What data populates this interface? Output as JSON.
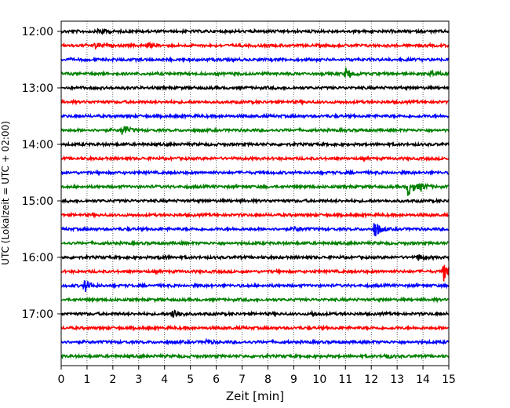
{
  "chart_data": {
    "type": "line",
    "title": "",
    "xlabel": "Zeit  [min]",
    "ylabel": "UTC (Lokalzeit = UTC + 02:00)",
    "xlim": [
      0,
      15
    ],
    "x_ticks": [
      0,
      1,
      2,
      3,
      4,
      5,
      6,
      7,
      8,
      9,
      10,
      11,
      12,
      13,
      14,
      15
    ],
    "x_tick_labels": [
      "0",
      "1",
      "2",
      "3",
      "4",
      "5",
      "6",
      "7",
      "8",
      "9",
      "10",
      "11",
      "12",
      "13",
      "14",
      "15"
    ],
    "y_tick_labels": [
      "12:00",
      "13:00",
      "14:00",
      "15:00",
      "16:00",
      "17:00"
    ],
    "y_tick_trace_index": [
      0,
      4,
      8,
      12,
      16,
      20
    ],
    "trace_interval_min": 15,
    "grid_x": true,
    "grid_x_style": "dotted",
    "colors": [
      "#000000",
      "#ff0000",
      "#0000ff",
      "#008000"
    ],
    "series": [
      {
        "start": "12:00",
        "color": "#000000",
        "events": [
          {
            "x": 1.45,
            "amp": 0.35
          }
        ]
      },
      {
        "start": "12:15",
        "color": "#ff0000",
        "events": [
          {
            "x": 1.3,
            "amp": 0.2
          },
          {
            "x": 3.3,
            "amp": 0.15
          }
        ]
      },
      {
        "start": "12:30",
        "color": "#0000ff",
        "events": []
      },
      {
        "start": "12:45",
        "color": "#008000",
        "events": [
          {
            "x": 11.0,
            "amp": 0.45
          },
          {
            "x": 14.3,
            "amp": 0.2
          }
        ]
      },
      {
        "start": "13:00",
        "color": "#000000",
        "events": []
      },
      {
        "start": "13:15",
        "color": "#ff0000",
        "events": []
      },
      {
        "start": "13:30",
        "color": "#0000ff",
        "events": []
      },
      {
        "start": "13:45",
        "color": "#008000",
        "events": [
          {
            "x": 2.35,
            "amp": 0.45
          }
        ]
      },
      {
        "start": "14:00",
        "color": "#000000",
        "events": []
      },
      {
        "start": "14:15",
        "color": "#ff0000",
        "events": []
      },
      {
        "start": "14:30",
        "color": "#0000ff",
        "events": []
      },
      {
        "start": "14:45",
        "color": "#008000",
        "events": [
          {
            "x": 13.4,
            "amp": 0.75
          },
          {
            "x": 13.9,
            "amp": 0.3
          }
        ]
      },
      {
        "start": "15:00",
        "color": "#000000",
        "events": []
      },
      {
        "start": "15:15",
        "color": "#ff0000",
        "events": []
      },
      {
        "start": "15:30",
        "color": "#0000ff",
        "events": [
          {
            "x": 12.1,
            "amp": 0.75
          },
          {
            "x": 9.0,
            "amp": 0.15
          }
        ]
      },
      {
        "start": "15:45",
        "color": "#008000",
        "events": []
      },
      {
        "start": "16:00",
        "color": "#000000",
        "events": [
          {
            "x": 13.8,
            "amp": 0.25
          },
          {
            "x": 3.8,
            "amp": 0.15
          }
        ]
      },
      {
        "start": "16:15",
        "color": "#ff0000",
        "events": [
          {
            "x": 14.8,
            "amp": 0.8
          }
        ]
      },
      {
        "start": "16:30",
        "color": "#0000ff",
        "events": [
          {
            "x": 0.9,
            "amp": 0.5
          }
        ]
      },
      {
        "start": "16:45",
        "color": "#008000",
        "events": []
      },
      {
        "start": "17:00",
        "color": "#000000",
        "events": [
          {
            "x": 4.3,
            "amp": 0.5
          },
          {
            "x": 9.7,
            "amp": 0.2
          }
        ]
      },
      {
        "start": "17:15",
        "color": "#ff0000",
        "events": []
      },
      {
        "start": "17:30",
        "color": "#0000ff",
        "events": [
          {
            "x": 5.6,
            "amp": 0.15
          }
        ]
      },
      {
        "start": "17:45",
        "color": "#008000",
        "events": [
          {
            "x": 12.5,
            "amp": 0.2
          }
        ]
      }
    ]
  }
}
